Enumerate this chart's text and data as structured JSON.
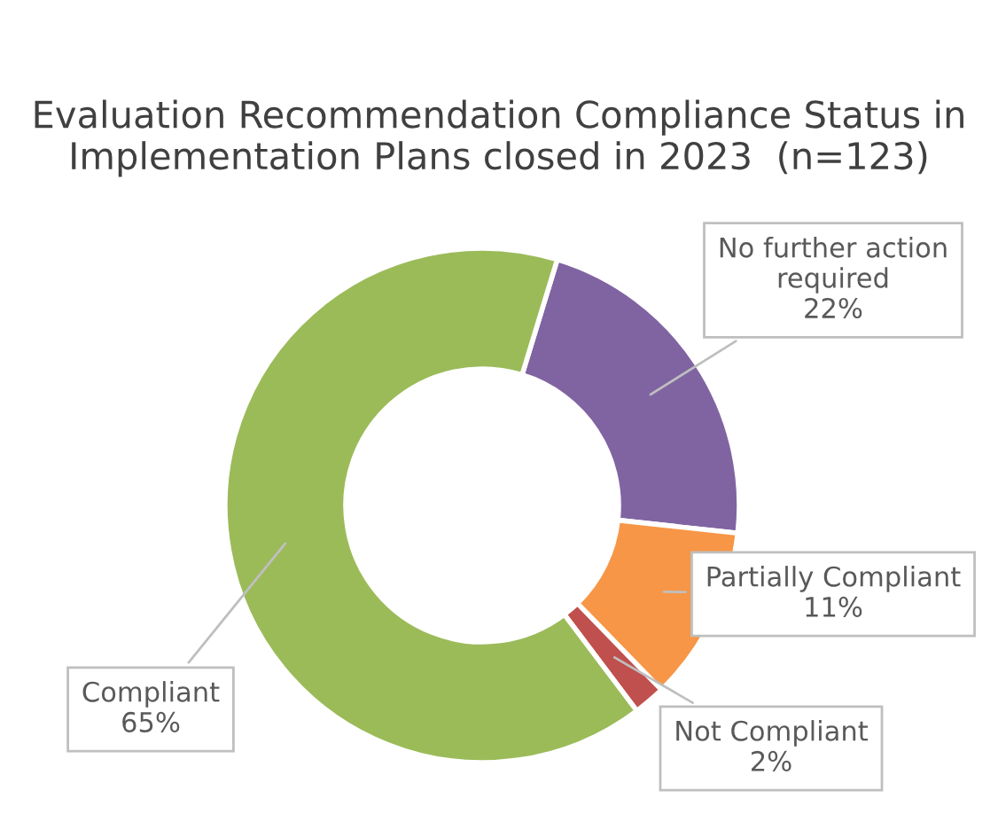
{
  "chart_data": {
    "type": "donut",
    "title": "Evaluation Recommendation Compliance Status in Implementation Plans closed in 2023  (n=123)",
    "categories": [
      "No further action required",
      "Partially Compliant",
      "Not Compliant",
      "Compliant"
    ],
    "values": [
      22,
      11,
      2,
      65
    ],
    "value_labels": [
      "22%",
      "11%",
      "2%",
      "65%"
    ],
    "colors": [
      "#8064a2",
      "#f79646",
      "#c0504d",
      "#9bbb59"
    ],
    "legend": false
  }
}
